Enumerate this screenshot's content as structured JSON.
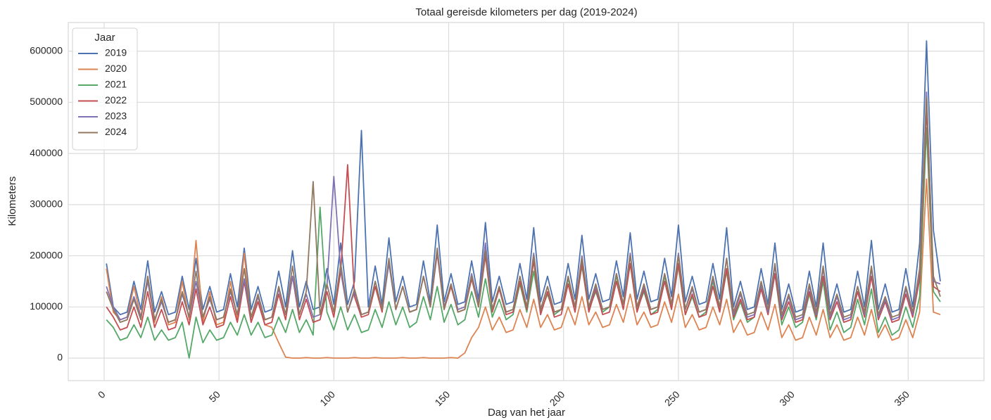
{
  "chart_data": {
    "type": "line",
    "title": "Totaal gereisde kilometers per dag (2019-2024)",
    "x_label": "Dag van het jaar",
    "y_label": "Kilometers",
    "legend_title": "Jaar",
    "legend": "upper left",
    "grid": true,
    "xlim": [
      -15.6,
      383
    ],
    "ylim": [
      -44000,
      656000
    ],
    "xticks": [
      0,
      50,
      100,
      150,
      200,
      250,
      300,
      350
    ],
    "yticks": [
      0,
      100000,
      200000,
      300000,
      400000,
      500000,
      600000
    ],
    "x": [
      1,
      4,
      7,
      10,
      13,
      16,
      19,
      22,
      25,
      28,
      31,
      34,
      37,
      40,
      43,
      46,
      49,
      52,
      55,
      58,
      61,
      64,
      67,
      70,
      73,
      76,
      79,
      82,
      85,
      88,
      91,
      94,
      97,
      100,
      103,
      106,
      109,
      112,
      115,
      118,
      121,
      124,
      127,
      130,
      133,
      136,
      139,
      142,
      145,
      148,
      151,
      154,
      157,
      160,
      163,
      166,
      169,
      172,
      175,
      178,
      181,
      184,
      187,
      190,
      193,
      196,
      199,
      202,
      205,
      208,
      211,
      214,
      217,
      220,
      223,
      226,
      229,
      232,
      235,
      238,
      241,
      244,
      247,
      250,
      253,
      256,
      259,
      262,
      265,
      268,
      271,
      274,
      277,
      280,
      283,
      286,
      289,
      292,
      295,
      298,
      301,
      304,
      307,
      310,
      313,
      316,
      319,
      322,
      325,
      328,
      331,
      334,
      337,
      340,
      343,
      346,
      349,
      352,
      355,
      358,
      361,
      364
    ],
    "series": [
      {
        "name": "2019",
        "color": "#4c72b0",
        "values": [
          185000,
          100000,
          85000,
          90000,
          150000,
          95000,
          190000,
          90000,
          130000,
          85000,
          90000,
          160000,
          95000,
          195000,
          95000,
          140000,
          90000,
          95000,
          165000,
          100000,
          215000,
          95000,
          140000,
          90000,
          95000,
          170000,
          100000,
          210000,
          100000,
          150000,
          95000,
          100000,
          175000,
          105000,
          225000,
          105000,
          150000,
          445000,
          100000,
          180000,
          105000,
          235000,
          110000,
          160000,
          100000,
          105000,
          190000,
          110000,
          260000,
          110000,
          165000,
          105000,
          110000,
          190000,
          115000,
          265000,
          110000,
          160000,
          105000,
          110000,
          185000,
          115000,
          255000,
          110000,
          160000,
          105000,
          110000,
          185000,
          115000,
          240000,
          115000,
          165000,
          110000,
          115000,
          190000,
          120000,
          245000,
          115000,
          170000,
          110000,
          115000,
          195000,
          120000,
          260000,
          110000,
          160000,
          105000,
          110000,
          185000,
          115000,
          255000,
          100000,
          150000,
          95000,
          100000,
          175000,
          105000,
          225000,
          95000,
          145000,
          90000,
          95000,
          170000,
          100000,
          225000,
          95000,
          145000,
          90000,
          95000,
          170000,
          100000,
          230000,
          95000,
          145000,
          90000,
          95000,
          175000,
          100000,
          225000,
          620000,
          250000,
          150000
        ]
      },
      {
        "name": "2020",
        "color": "#dd8452",
        "values": [
          175000,
          90000,
          75000,
          80000,
          140000,
          80000,
          160000,
          70000,
          120000,
          65000,
          70000,
          150000,
          75000,
          230000,
          70000,
          130000,
          65000,
          70000,
          150000,
          75000,
          205000,
          70000,
          120000,
          65000,
          60000,
          30000,
          2000,
          0,
          0,
          1000,
          0,
          0,
          1000,
          0,
          0,
          0,
          1000,
          0,
          0,
          1000,
          0,
          0,
          0,
          1000,
          0,
          0,
          1000,
          0,
          0,
          0,
          1000,
          0,
          10000,
          40000,
          60000,
          100000,
          55000,
          80000,
          50000,
          55000,
          95000,
          60000,
          115000,
          60000,
          85000,
          55000,
          60000,
          100000,
          65000,
          120000,
          65000,
          90000,
          60000,
          65000,
          105000,
          70000,
          125000,
          65000,
          90000,
          60000,
          65000,
          110000,
          70000,
          125000,
          60000,
          85000,
          55000,
          60000,
          100000,
          65000,
          115000,
          50000,
          75000,
          45000,
          50000,
          90000,
          55000,
          105000,
          40000,
          65000,
          35000,
          40000,
          80000,
          45000,
          95000,
          40000,
          65000,
          35000,
          40000,
          80000,
          45000,
          95000,
          40000,
          65000,
          35000,
          40000,
          75000,
          40000,
          90000,
          350000,
          90000,
          85000
        ]
      },
      {
        "name": "2021",
        "color": "#55a868",
        "values": [
          75000,
          60000,
          35000,
          40000,
          65000,
          40000,
          80000,
          35000,
          55000,
          35000,
          40000,
          70000,
          0,
          80000,
          30000,
          55000,
          35000,
          40000,
          70000,
          45000,
          85000,
          45000,
          70000,
          40000,
          45000,
          80000,
          50000,
          95000,
          50000,
          75000,
          45000,
          295000,
          90000,
          55000,
          100000,
          55000,
          85000,
          50000,
          55000,
          95000,
          60000,
          110000,
          65000,
          100000,
          60000,
          70000,
          120000,
          75000,
          140000,
          70000,
          105000,
          65000,
          75000,
          130000,
          80000,
          155000,
          80000,
          115000,
          75000,
          85000,
          145000,
          90000,
          170000,
          90000,
          125000,
          85000,
          95000,
          155000,
          100000,
          180000,
          95000,
          130000,
          90000,
          100000,
          160000,
          105000,
          185000,
          95000,
          130000,
          85000,
          95000,
          160000,
          100000,
          180000,
          85000,
          120000,
          80000,
          90000,
          150000,
          95000,
          170000,
          75000,
          110000,
          70000,
          80000,
          140000,
          85000,
          165000,
          65000,
          100000,
          60000,
          70000,
          125000,
          75000,
          150000,
          55000,
          90000,
          50000,
          60000,
          115000,
          65000,
          135000,
          50000,
          80000,
          45000,
          55000,
          100000,
          60000,
          120000,
          450000,
          130000,
          110000
        ]
      },
      {
        "name": "2022",
        "color": "#c44e52",
        "values": [
          100000,
          80000,
          55000,
          60000,
          100000,
          60000,
          130000,
          60000,
          95000,
          55000,
          60000,
          110000,
          65000,
          135000,
          65000,
          100000,
          60000,
          65000,
          120000,
          70000,
          150000,
          70000,
          110000,
          65000,
          70000,
          125000,
          75000,
          160000,
          75000,
          115000,
          70000,
          75000,
          130000,
          80000,
          170000,
          378000,
          120000,
          80000,
          85000,
          140000,
          90000,
          190000,
          95000,
          140000,
          90000,
          95000,
          160000,
          100000,
          205000,
          95000,
          140000,
          90000,
          95000,
          155000,
          100000,
          200000,
          90000,
          135000,
          85000,
          90000,
          150000,
          95000,
          190000,
          85000,
          130000,
          80000,
          85000,
          145000,
          90000,
          185000,
          90000,
          135000,
          85000,
          90000,
          150000,
          95000,
          185000,
          90000,
          135000,
          85000,
          90000,
          150000,
          95000,
          185000,
          85000,
          125000,
          80000,
          85000,
          140000,
          90000,
          175000,
          80000,
          115000,
          75000,
          80000,
          135000,
          85000,
          165000,
          75000,
          110000,
          70000,
          75000,
          130000,
          80000,
          160000,
          75000,
          110000,
          70000,
          75000,
          130000,
          80000,
          160000,
          75000,
          110000,
          70000,
          75000,
          125000,
          80000,
          155000,
          490000,
          140000,
          130000
        ]
      },
      {
        "name": "2023",
        "color": "#8172b3",
        "values": [
          140000,
          100000,
          75000,
          80000,
          120000,
          80000,
          150000,
          75000,
          110000,
          70000,
          75000,
          125000,
          80000,
          150000,
          80000,
          115000,
          75000,
          80000,
          130000,
          85000,
          155000,
          80000,
          120000,
          75000,
          80000,
          135000,
          85000,
          160000,
          85000,
          125000,
          80000,
          85000,
          140000,
          355000,
          170000,
          90000,
          130000,
          85000,
          90000,
          150000,
          95000,
          185000,
          95000,
          140000,
          90000,
          95000,
          160000,
          100000,
          210000,
          100000,
          145000,
          95000,
          100000,
          165000,
          105000,
          225000,
          95000,
          140000,
          90000,
          95000,
          160000,
          100000,
          205000,
          95000,
          140000,
          90000,
          95000,
          160000,
          100000,
          200000,
          100000,
          140000,
          95000,
          100000,
          165000,
          105000,
          205000,
          100000,
          140000,
          95000,
          100000,
          165000,
          105000,
          205000,
          95000,
          135000,
          90000,
          95000,
          155000,
          100000,
          195000,
          85000,
          125000,
          80000,
          85000,
          145000,
          90000,
          180000,
          80000,
          120000,
          75000,
          80000,
          140000,
          85000,
          175000,
          80000,
          120000,
          75000,
          80000,
          140000,
          85000,
          175000,
          80000,
          115000,
          75000,
          80000,
          135000,
          85000,
          170000,
          520000,
          150000,
          145000
        ]
      },
      {
        "name": "2024",
        "color": "#937860",
        "values": [
          130000,
          95000,
          70000,
          75000,
          115000,
          75000,
          160000,
          75000,
          115000,
          70000,
          75000,
          130000,
          80000,
          170000,
          80000,
          120000,
          75000,
          80000,
          135000,
          85000,
          175000,
          80000,
          125000,
          75000,
          80000,
          140000,
          85000,
          180000,
          85000,
          130000,
          345000,
          85000,
          145000,
          90000,
          185000,
          90000,
          135000,
          85000,
          90000,
          150000,
          95000,
          195000,
          95000,
          140000,
          90000,
          95000,
          160000,
          100000,
          215000,
          95000,
          145000,
          90000,
          95000,
          160000,
          100000,
          210000,
          95000,
          140000,
          90000,
          95000,
          160000,
          100000,
          200000,
          95000,
          140000,
          90000,
          95000,
          160000,
          100000,
          195000,
          100000,
          145000,
          95000,
          100000,
          165000,
          105000,
          200000,
          100000,
          145000,
          95000,
          100000,
          165000,
          105000,
          200000,
          95000,
          140000,
          90000,
          95000,
          160000,
          100000,
          195000,
          90000,
          130000,
          85000,
          90000,
          150000,
          95000,
          185000,
          85000,
          125000,
          80000,
          85000,
          145000,
          90000,
          180000,
          85000,
          125000,
          80000,
          85000,
          140000,
          90000,
          180000,
          85000,
          120000,
          80000,
          85000,
          140000,
          90000,
          175000,
          510000,
          160000,
          120000
        ]
      }
    ]
  }
}
